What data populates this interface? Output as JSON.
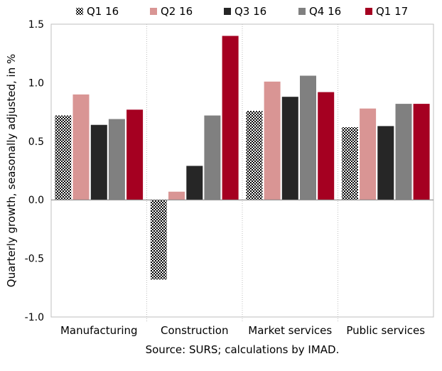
{
  "chart_data": {
    "type": "bar",
    "categories": [
      "Manufacturing",
      "Construction",
      "Market services",
      "Public services"
    ],
    "series": [
      {
        "name": "Q1 16",
        "values": [
          0.72,
          -0.68,
          0.76,
          0.62
        ],
        "color": "#000000",
        "pattern": "checker"
      },
      {
        "name": "Q2 16",
        "values": [
          0.9,
          0.07,
          1.01,
          0.78
        ],
        "color": "#D99594"
      },
      {
        "name": "Q3 16",
        "values": [
          0.64,
          0.29,
          0.88,
          0.63
        ],
        "color": "#262626"
      },
      {
        "name": "Q4 16",
        "values": [
          0.69,
          0.72,
          1.06,
          0.82
        ],
        "color": "#808080"
      },
      {
        "name": "Q1 17",
        "values": [
          0.77,
          1.4,
          0.92,
          0.82
        ],
        "color": "#A50021"
      }
    ],
    "ylabel": "Quarterly growth, seasonally adjusted, in %",
    "ylim": [
      -1.0,
      1.5
    ],
    "yticks": [
      "-1.0",
      "-0.5",
      "0.0",
      "0.5",
      "1.0",
      "1.5"
    ],
    "legend_position": "top",
    "grid": "vertical category separators (dotted)"
  },
  "source": "Source: SURS; calculations by IMAD."
}
